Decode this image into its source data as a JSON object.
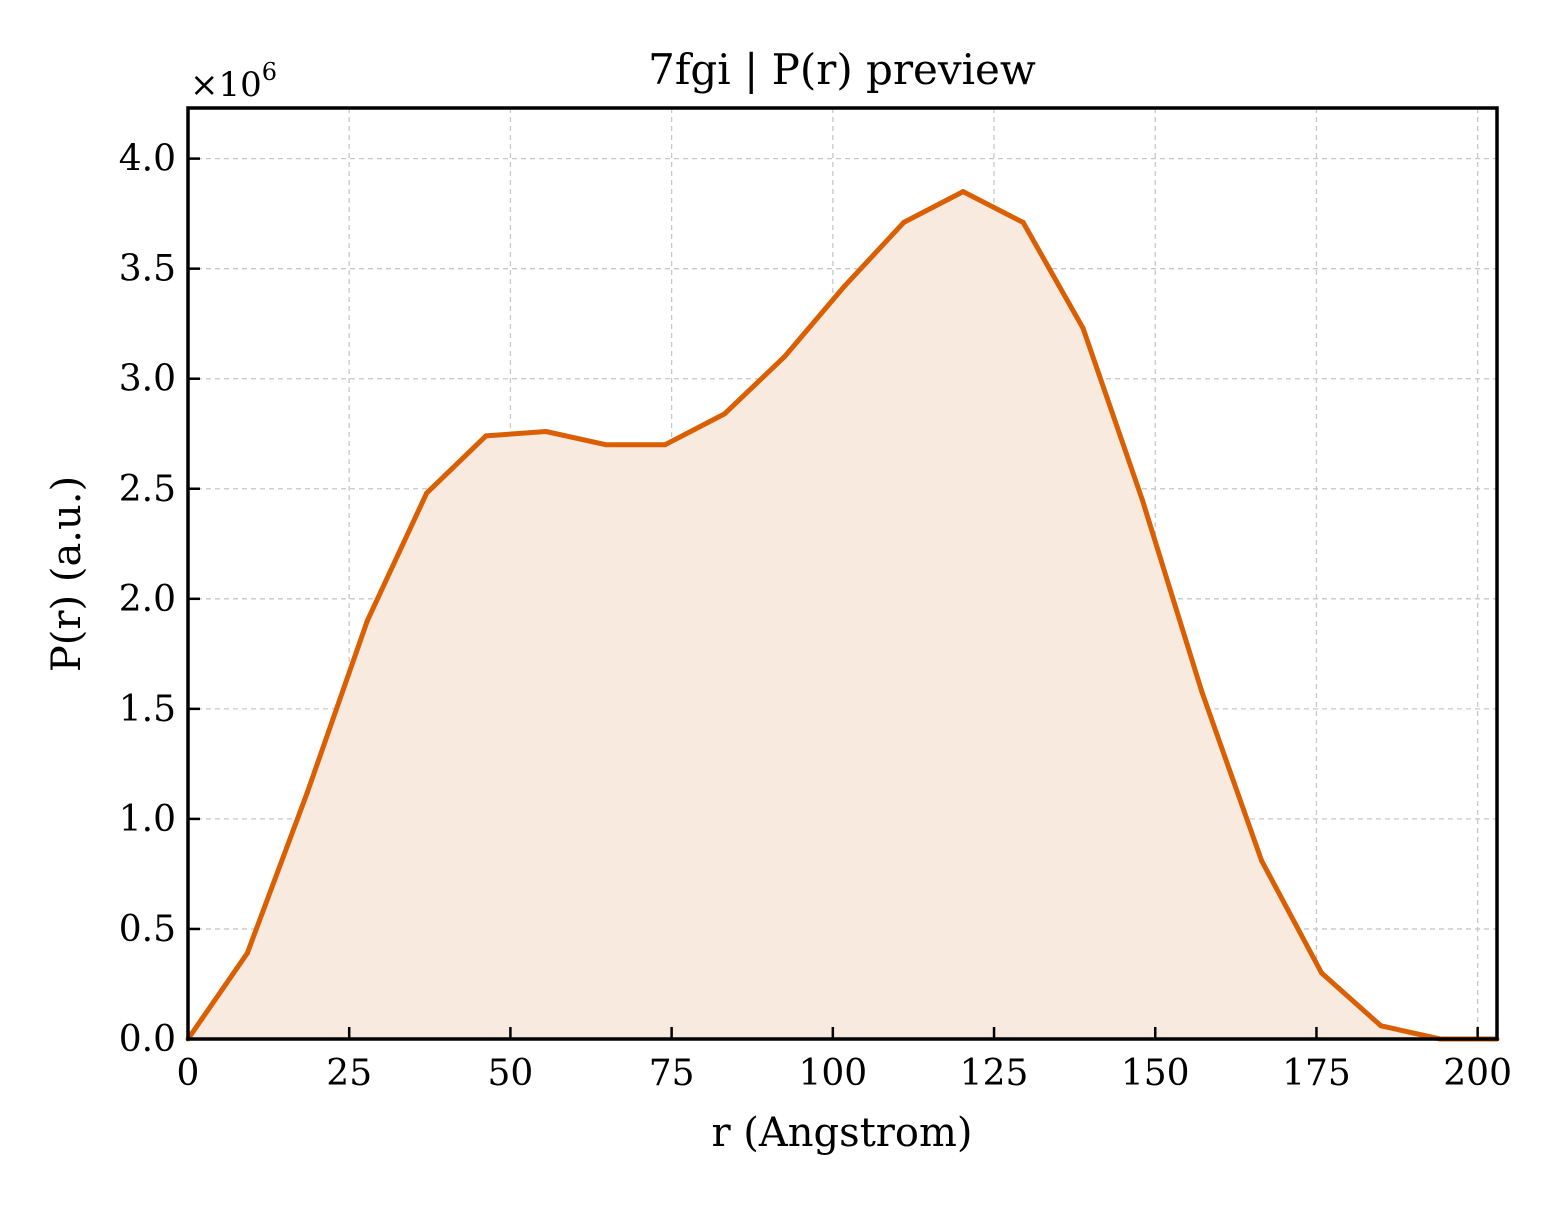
{
  "chart_data": {
    "type": "area",
    "title": "7fgi | P(r) preview",
    "xlabel": "r (Angstrom)",
    "ylabel": "P(r) (a.u.)",
    "y_multiplier_label": "×10",
    "y_multiplier_exponent": "6",
    "xlim": [
      0,
      203
    ],
    "ylim": [
      0,
      4.23
    ],
    "x_ticks": [
      0,
      25,
      50,
      75,
      100,
      125,
      150,
      175,
      200
    ],
    "x_tick_labels": [
      "0",
      "25",
      "50",
      "75",
      "100",
      "125",
      "150",
      "175",
      "200"
    ],
    "y_ticks": [
      0,
      0.5,
      1.0,
      1.5,
      2.0,
      2.5,
      3.0,
      3.5,
      4.0
    ],
    "y_tick_labels": [
      "0.0",
      "0.5",
      "1.0",
      "1.5",
      "2.0",
      "2.5",
      "3.0",
      "3.5",
      "4.0"
    ],
    "grid": true,
    "series": [
      {
        "color": "#d95f02",
        "fill_color": "#f9eadf",
        "x": [
          0,
          9.2,
          18.5,
          27.8,
          37.0,
          46.2,
          55.5,
          64.8,
          74.0,
          83.2,
          92.5,
          101.8,
          111.0,
          120.2,
          129.5,
          138.8,
          148.0,
          157.2,
          166.5,
          175.8,
          185.0,
          194.2,
          203.0
        ],
        "y": [
          0.0,
          0.39,
          1.12,
          1.9,
          2.48,
          2.74,
          2.76,
          2.7,
          2.7,
          2.84,
          3.1,
          3.42,
          3.71,
          3.85,
          3.71,
          3.23,
          2.45,
          1.58,
          0.81,
          0.3,
          0.06,
          0.0,
          0.0
        ]
      }
    ]
  }
}
